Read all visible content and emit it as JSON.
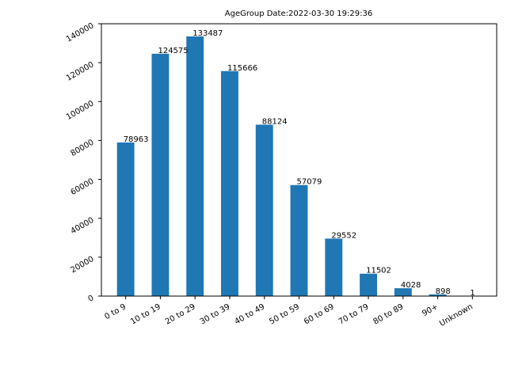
{
  "chart_data": {
    "type": "bar",
    "title": "AgeGroup  Date:2022-03-30 19:29:36",
    "xlabel": "",
    "ylabel": "",
    "categories": [
      "0 to 9",
      "10 to 19",
      "20 to 29",
      "30 to 39",
      "40 to 49",
      "50 to 59",
      "60 to 69",
      "70 to 79",
      "80 to 89",
      "90+",
      "Unknown"
    ],
    "values": [
      78963,
      124575,
      133487,
      115666,
      88124,
      57079,
      29552,
      11502,
      4028,
      898,
      1
    ],
    "ylim": [
      0,
      140000
    ],
    "yticks": [
      0,
      20000,
      40000,
      60000,
      80000,
      100000,
      120000,
      140000
    ],
    "bar_color": "#1f77b4",
    "grid": false,
    "legend": "none"
  }
}
